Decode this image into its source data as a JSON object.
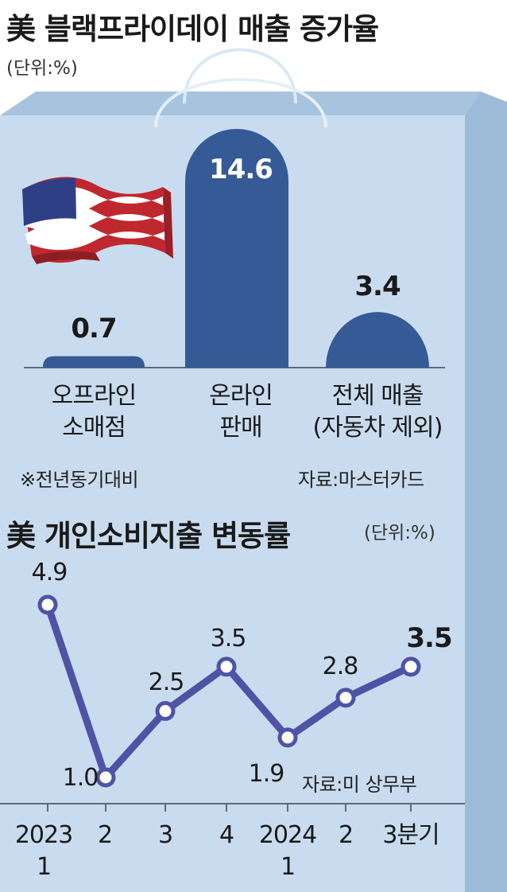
{
  "colors": {
    "bag_front": "#c9dcef",
    "bag_top": "#a8c3de",
    "bag_side": "#9dbbd9",
    "bar": "#355a96",
    "line": "#4f53a5"
  },
  "icons": [
    "us-flag-icon"
  ],
  "chart_data": [
    {
      "type": "bar",
      "title": "美 블랙프라이데이 매출 증가율",
      "unit": "(단위:%)",
      "categories": [
        [
          "오프라인",
          "소매점"
        ],
        [
          "온라인",
          "판매"
        ],
        [
          "전체 매출",
          "(자동차 제외)"
        ]
      ],
      "values": [
        0.7,
        14.6,
        3.4
      ],
      "value_labels": [
        "0.7",
        "14.6",
        "3.4"
      ],
      "ylim": [
        0,
        14.6
      ],
      "note": "※전년동기대비",
      "source": "자료:마스터카드"
    },
    {
      "type": "line",
      "title": "美 개인소비지출 변동률",
      "unit": "(단위:%)",
      "x": [
        [
          "2023",
          "1"
        ],
        [
          "2",
          ""
        ],
        [
          "3",
          ""
        ],
        [
          "4",
          ""
        ],
        [
          "2024",
          "1"
        ],
        [
          "2",
          ""
        ],
        [
          "3분기",
          ""
        ]
      ],
      "values": [
        4.9,
        1.0,
        2.5,
        3.5,
        1.9,
        2.8,
        3.5
      ],
      "value_labels": [
        "4.9",
        "1.0",
        "2.5",
        "3.5",
        "1.9",
        "2.8",
        "3.5"
      ],
      "ylim": [
        1.0,
        4.9
      ],
      "source": "자료:미 상무부"
    }
  ]
}
